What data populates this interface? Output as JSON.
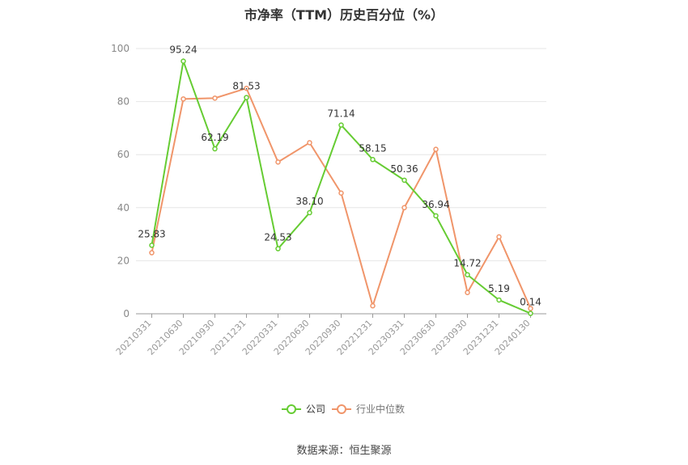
{
  "chart_data": {
    "type": "line",
    "title": "市净率（TTM）历史百分位（%）",
    "categories": [
      "20210331",
      "20210630",
      "20210930",
      "20211231",
      "20220331",
      "20220630",
      "20220930",
      "20221231",
      "20230331",
      "20230630",
      "20230930",
      "20231231",
      "20240130"
    ],
    "ylim": [
      0,
      100
    ],
    "yticks": [
      0,
      20,
      40,
      60,
      80,
      100
    ],
    "grid": true,
    "legend_position": "bottom",
    "series": [
      {
        "name": "公司",
        "color": "#66cc33",
        "values": [
          25.83,
          95.24,
          62.19,
          81.53,
          24.53,
          38.1,
          71.14,
          58.15,
          50.36,
          36.94,
          14.72,
          5.19,
          0.14
        ],
        "labels": [
          "25.83",
          "95.24",
          "62.19",
          "81.53",
          "24.53",
          "38.10",
          "71.14",
          "58.15",
          "50.36",
          "36.94",
          "14.72",
          "5.19",
          "0.14"
        ]
      },
      {
        "name": "行业中位数",
        "color": "#f0956a",
        "values": [
          23,
          81,
          81.3,
          85,
          57.2,
          64.5,
          45.5,
          3,
          40,
          62,
          8,
          29,
          2
        ]
      }
    ]
  },
  "source": "数据来源：恒生聚源"
}
